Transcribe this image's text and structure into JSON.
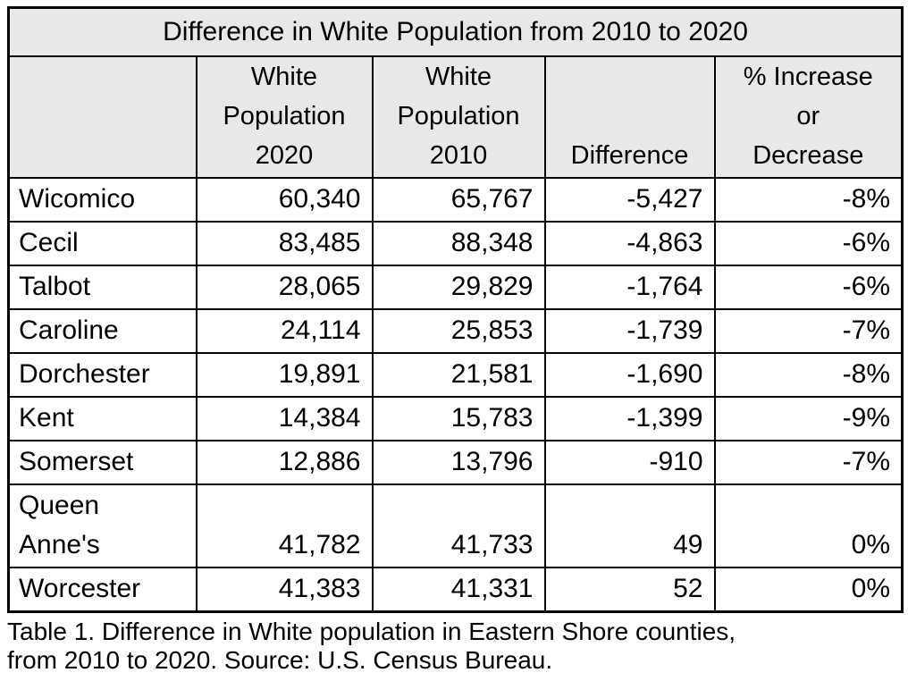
{
  "table": {
    "title": "Difference in White Population from 2010 to 2020",
    "columns": [
      "",
      "White\nPopulation\n2020",
      "White\nPopulation\n2010",
      "Difference",
      "% Increase\nor\nDecrease"
    ],
    "rows": [
      {
        "county": "Wicomico",
        "pop2020": "60,340",
        "pop2010": "65,767",
        "difference": "-5,427",
        "pct": "-8%"
      },
      {
        "county": "Cecil",
        "pop2020": "83,485",
        "pop2010": "88,348",
        "difference": "-4,863",
        "pct": "-6%"
      },
      {
        "county": "Talbot",
        "pop2020": "28,065",
        "pop2010": "29,829",
        "difference": "-1,764",
        "pct": "-6%"
      },
      {
        "county": "Caroline",
        "pop2020": "24,114",
        "pop2010": "25,853",
        "difference": "-1,739",
        "pct": "-7%"
      },
      {
        "county": "Dorchester",
        "pop2020": "19,891",
        "pop2010": "21,581",
        "difference": "-1,690",
        "pct": "-8%"
      },
      {
        "county": "Kent",
        "pop2020": "14,384",
        "pop2010": "15,783",
        "difference": "-1,399",
        "pct": "-9%"
      },
      {
        "county": "Somerset",
        "pop2020": "12,886",
        "pop2010": "13,796",
        "difference": "-910",
        "pct": "-7%"
      },
      {
        "county": "Queen\nAnne's",
        "pop2020": "41,782",
        "pop2010": "41,733",
        "difference": "49",
        "pct": "0%"
      },
      {
        "county": "Worcester",
        "pop2020": "41,383",
        "pop2010": "41,331",
        "difference": "52",
        "pct": "0%"
      }
    ],
    "header_bg_color": "#e8e8e8",
    "border_color": "#000000"
  },
  "caption": "Table 1. Difference in White population in Eastern Shore counties,\nfrom 2010 to 2020. Source: U.S. Census Bureau."
}
